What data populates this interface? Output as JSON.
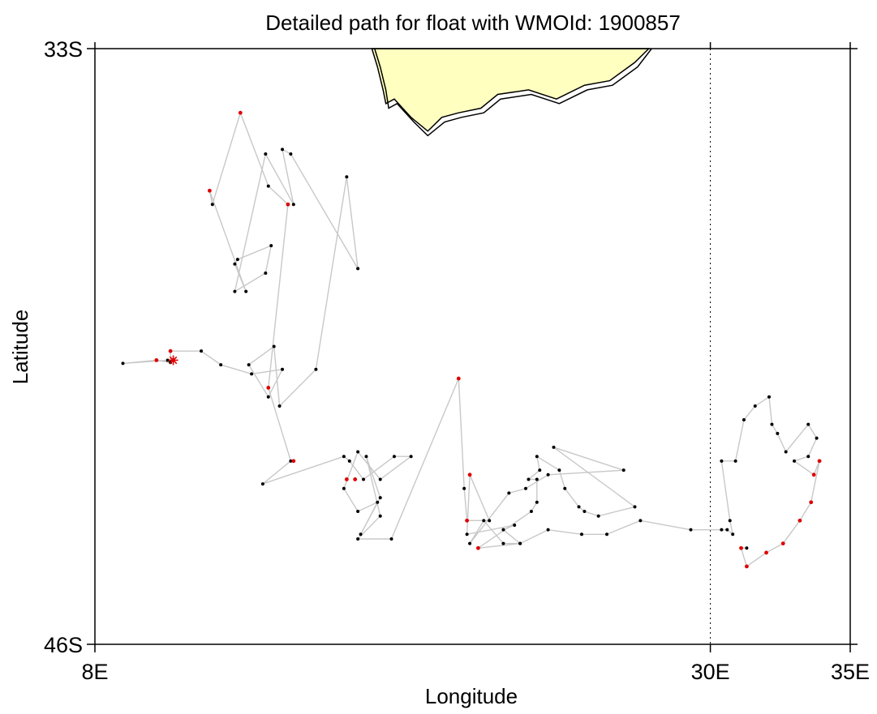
{
  "chart_data": {
    "type": "scatter",
    "title": "Detailed path for float with WMOId: 1900857",
    "xlabel": "Longitude",
    "ylabel": "Latitude",
    "xlim": [
      8,
      35
    ],
    "ylim": [
      -46,
      -33
    ],
    "x_ticks": [
      8,
      30,
      35
    ],
    "x_tick_labels": [
      "8E",
      "30E",
      "35E"
    ],
    "y_ticks": [
      -33,
      -46
    ],
    "y_tick_labels": [
      "33S",
      "46S"
    ],
    "reference_longitude": 30,
    "grid": false,
    "colors": {
      "land": "#ffffc0",
      "coast": "#000000",
      "track": "#c8c8c8",
      "profile": "#000000",
      "highlight": "#e00000",
      "reference_line": "#000000"
    },
    "deployment": {
      "lon": 10.8,
      "lat": -39.8
    },
    "land_polygon": [
      [
        17.9,
        -33.0
      ],
      [
        18.1,
        -33.4
      ],
      [
        18.3,
        -33.9
      ],
      [
        18.4,
        -34.2
      ],
      [
        18.7,
        -34.1
      ],
      [
        19.3,
        -34.5
      ],
      [
        19.9,
        -34.8
      ],
      [
        20.4,
        -34.5
      ],
      [
        21.0,
        -34.4
      ],
      [
        21.8,
        -34.3
      ],
      [
        22.4,
        -34.0
      ],
      [
        23.5,
        -33.9
      ],
      [
        24.5,
        -34.1
      ],
      [
        25.5,
        -33.8
      ],
      [
        26.4,
        -33.7
      ],
      [
        27.3,
        -33.3
      ],
      [
        27.8,
        -33.0
      ]
    ],
    "coast2": [
      [
        18.0,
        -33.0
      ],
      [
        18.2,
        -33.4
      ],
      [
        18.4,
        -33.9
      ],
      [
        18.5,
        -34.3
      ],
      [
        18.8,
        -34.2
      ],
      [
        19.4,
        -34.6
      ],
      [
        19.9,
        -34.9
      ],
      [
        20.5,
        -34.6
      ],
      [
        21.1,
        -34.5
      ],
      [
        21.9,
        -34.4
      ],
      [
        22.5,
        -34.1
      ],
      [
        23.6,
        -34.0
      ],
      [
        24.6,
        -34.2
      ],
      [
        25.6,
        -33.9
      ],
      [
        26.5,
        -33.8
      ],
      [
        27.4,
        -33.4
      ],
      [
        27.9,
        -33.0
      ]
    ],
    "track": [
      [
        10.8,
        -39.8
      ],
      [
        10.6,
        -39.8
      ],
      [
        9.0,
        -39.87
      ],
      [
        10.2,
        -39.8
      ],
      [
        10.7,
        -39.85
      ],
      [
        10.7,
        -39.6
      ],
      [
        11.8,
        -39.6
      ],
      [
        12.5,
        -39.9
      ],
      [
        13.6,
        -40.1
      ],
      [
        14.7,
        -40.0
      ],
      [
        14.2,
        -40.6
      ],
      [
        13.5,
        -39.9
      ],
      [
        14.4,
        -39.5
      ],
      [
        14.6,
        -40.8
      ],
      [
        15.9,
        -40.0
      ],
      [
        17.0,
        -35.8
      ],
      [
        17.4,
        -37.8
      ],
      [
        15.0,
        -35.3
      ],
      [
        14.7,
        -35.2
      ],
      [
        15.1,
        -36.4
      ],
      [
        14.1,
        -35.3
      ],
      [
        13.0,
        -38.3
      ],
      [
        14.1,
        -37.9
      ],
      [
        14.3,
        -37.3
      ],
      [
        13.1,
        -37.6
      ],
      [
        13.0,
        -37.7
      ],
      [
        13.4,
        -38.3
      ],
      [
        12.1,
        -36.1
      ],
      [
        12.2,
        -36.4
      ],
      [
        13.2,
        -34.4
      ],
      [
        14.2,
        -36.0
      ],
      [
        14.9,
        -36.4
      ],
      [
        14.2,
        -40.4
      ],
      [
        15.0,
        -42.0
      ],
      [
        14.0,
        -42.5
      ],
      [
        16.9,
        -41.9
      ],
      [
        17.1,
        -42.0
      ],
      [
        17.6,
        -42.4
      ],
      [
        18.7,
        -41.9
      ],
      [
        19.3,
        -41.9
      ],
      [
        18.2,
        -42.4
      ],
      [
        17.4,
        -41.8
      ],
      [
        16.9,
        -42.6
      ],
      [
        17.4,
        -43.1
      ],
      [
        18.1,
        -42.9
      ],
      [
        17.5,
        -43.6
      ],
      [
        18.2,
        -42.8
      ],
      [
        17.7,
        -41.9
      ],
      [
        18.2,
        -43.2
      ],
      [
        17.4,
        -43.7
      ],
      [
        18.6,
        -43.7
      ],
      [
        21.0,
        -40.2
      ],
      [
        21.2,
        -42.6
      ],
      [
        21.3,
        -43.3
      ],
      [
        22.1,
        -43.3
      ],
      [
        21.4,
        -42.3
      ],
      [
        21.3,
        -43.6
      ],
      [
        23.0,
        -43.4
      ],
      [
        22.6,
        -43.5
      ],
      [
        23.2,
        -43.8
      ],
      [
        21.7,
        -43.9
      ],
      [
        23.6,
        -43.1
      ],
      [
        23.8,
        -42.9
      ],
      [
        23.8,
        -42.4
      ],
      [
        23.5,
        -42.4
      ],
      [
        23.9,
        -42.2
      ],
      [
        23.8,
        -41.9
      ],
      [
        24.6,
        -42.2
      ],
      [
        24.8,
        -42.6
      ],
      [
        25.3,
        -43.0
      ],
      [
        25.5,
        -43.1
      ],
      [
        26.0,
        -43.2
      ],
      [
        27.3,
        -43.0
      ],
      [
        24.4,
        -41.7
      ],
      [
        26.9,
        -42.2
      ],
      [
        24.2,
        -42.3
      ],
      [
        23.4,
        -42.6
      ],
      [
        22.8,
        -42.7
      ],
      [
        21.4,
        -43.8
      ],
      [
        21.9,
        -43.3
      ],
      [
        22.6,
        -43.8
      ],
      [
        23.2,
        -43.8
      ],
      [
        24.2,
        -43.5
      ],
      [
        25.4,
        -43.6
      ],
      [
        26.3,
        -43.6
      ],
      [
        27.5,
        -43.3
      ],
      [
        29.3,
        -43.5
      ],
      [
        30.4,
        -43.5
      ],
      [
        30.6,
        -43.5
      ],
      [
        30.8,
        -43.6
      ],
      [
        30.7,
        -43.3
      ],
      [
        30.4,
        -42.0
      ],
      [
        30.9,
        -42.0
      ],
      [
        31.2,
        -41.1
      ],
      [
        31.6,
        -40.8
      ],
      [
        32.1,
        -40.6
      ],
      [
        32.2,
        -41.2
      ],
      [
        32.4,
        -41.4
      ],
      [
        32.7,
        -41.8
      ],
      [
        33.5,
        -41.2
      ],
      [
        33.8,
        -41.5
      ],
      [
        33.5,
        -41.9
      ],
      [
        33.0,
        -42.0
      ],
      [
        33.7,
        -42.3
      ],
      [
        33.9,
        -42.0
      ],
      [
        33.6,
        -42.9
      ],
      [
        33.2,
        -43.3
      ],
      [
        32.6,
        -43.8
      ],
      [
        32.0,
        -44.0
      ],
      [
        31.3,
        -44.3
      ],
      [
        31.1,
        -43.9
      ],
      [
        31.3,
        -43.9
      ]
    ],
    "highlight_points": [
      [
        10.8,
        -39.8
      ],
      [
        10.7,
        -39.6
      ],
      [
        10.2,
        -39.8
      ],
      [
        13.2,
        -34.4
      ],
      [
        12.1,
        -36.1
      ],
      [
        14.9,
        -36.4
      ],
      [
        14.2,
        -40.4
      ],
      [
        15.1,
        -42.0
      ],
      [
        17.0,
        -42.4
      ],
      [
        17.3,
        -42.4
      ],
      [
        21.0,
        -40.2
      ],
      [
        21.3,
        -43.3
      ],
      [
        21.7,
        -43.9
      ],
      [
        21.4,
        -42.3
      ],
      [
        31.3,
        -44.3
      ],
      [
        31.1,
        -43.9
      ],
      [
        33.2,
        -43.3
      ],
      [
        33.6,
        -42.9
      ],
      [
        33.9,
        -42.0
      ],
      [
        33.7,
        -42.3
      ],
      [
        32.6,
        -43.8
      ],
      [
        32.0,
        -44.0
      ]
    ]
  }
}
